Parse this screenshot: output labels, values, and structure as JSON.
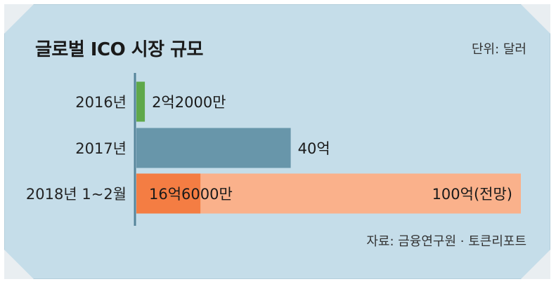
{
  "header": {
    "title": "글로벌 ICO 시장 규모",
    "unit": "단위: 달러"
  },
  "footer": {
    "source": "자료: 금융연구원 · 토큰리포트"
  },
  "colors": {
    "bar_2016": "#5fa84a",
    "bar_2017": "#6896aa",
    "bar_2018_actual": "#f47d43",
    "bar_2018_forecast": "#fab18b",
    "axis": "#55849a"
  },
  "chart_data": {
    "type": "bar",
    "orientation": "horizontal",
    "categories": [
      "2016년",
      "2017년",
      "2018년 1~2월"
    ],
    "values": [
      2.2,
      40,
      16.6
    ],
    "forecast": [
      null,
      null,
      100
    ],
    "value_unit": "억 달러",
    "data_labels": [
      "2억2000만",
      "40억",
      "16억6000만"
    ],
    "forecast_labels": [
      null,
      null,
      "100억(전망)"
    ],
    "title": "글로벌 ICO 시장 규모",
    "xlabel": "",
    "ylabel": "",
    "xlim": [
      0,
      100
    ],
    "grid": false,
    "legend": "none"
  }
}
